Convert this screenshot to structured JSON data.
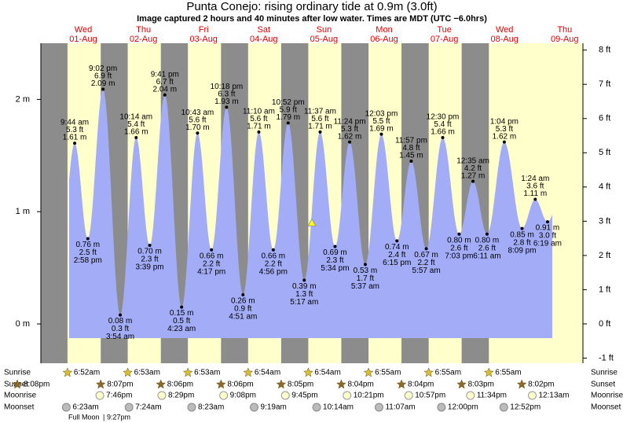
{
  "chart_data": {
    "type": "tide",
    "title": "Punta Conejo: rising  ordinary tide at 0.9m (3.0ft)",
    "subtitle": "Image captured 2 hours and 40 minutes after low water. Times are MDT (UTC −6.0hrs)",
    "current_m": 0.9,
    "ylim": [
      -0.35,
      2.5
    ],
    "yticks": [
      {
        "value": 0,
        "label": "0 m"
      },
      {
        "value": 1,
        "label": "1 m"
      },
      {
        "value": 2,
        "label": "2 m"
      }
    ],
    "y2lim": [
      -1.15,
      8.2
    ],
    "y2ticks": [
      {
        "value": -1,
        "label": "-1 ft"
      },
      {
        "value": 0,
        "label": "0 ft"
      },
      {
        "value": 1,
        "label": "1 ft"
      },
      {
        "value": 2,
        "label": "2 ft"
      },
      {
        "value": 3,
        "label": "3 ft"
      },
      {
        "value": 4,
        "label": "4 ft"
      },
      {
        "value": 5,
        "label": "5 ft"
      },
      {
        "value": 6,
        "label": "6 ft"
      },
      {
        "value": 7,
        "label": "7 ft"
      },
      {
        "value": 8,
        "label": "8 ft"
      }
    ],
    "fill_color": "#a3adf7",
    "day_color": "#ffffcc",
    "night_color": "#8c8c8c",
    "row_labels": {
      "sunrise": "Sunrise",
      "sunset": "Sunset",
      "moonrise": "Moonrise",
      "moonset": "Moonset"
    },
    "prev_sunset": "8:08pm",
    "moon_phase": {
      "name": "Full Moon",
      "time": "9:27pm"
    },
    "days": [
      {
        "dow": "Wed",
        "date": "01-Aug",
        "sunrise": "6:52am",
        "sunset": "8:07pm",
        "moonrise": "7:46pm",
        "moonset": "6:23am",
        "tides": [
          {
            "time": "9:44 am",
            "m": 1.61,
            "m_label": "1.61 m",
            "ft": 5.3,
            "ft_label": "5.3 ft"
          },
          {
            "time": "2:58 pm",
            "m": 0.76,
            "m_label": "0.76 m",
            "ft": 2.5,
            "ft_label": "2.5 ft"
          },
          {
            "time": "9:02 pm",
            "m": 2.09,
            "m_label": "2.09 m",
            "ft": 6.9,
            "ft_label": "6.9 ft"
          }
        ]
      },
      {
        "dow": "Thu",
        "date": "02-Aug",
        "sunrise": "6:53am",
        "sunset": "8:06pm",
        "moonrise": "8:29pm",
        "moonset": "7:24am",
        "tides": [
          {
            "time": "3:54 am",
            "m": 0.08,
            "m_label": "0.08 m",
            "ft": 0.3,
            "ft_label": "0.3 ft"
          },
          {
            "time": "10:14 am",
            "m": 1.66,
            "m_label": "1.66 m",
            "ft": 5.4,
            "ft_label": "5.4 ft"
          },
          {
            "time": "3:39 pm",
            "m": 0.7,
            "m_label": "0.70 m",
            "ft": 2.3,
            "ft_label": "2.3 ft"
          },
          {
            "time": "9:41 pm",
            "m": 2.04,
            "m_label": "2.04 m",
            "ft": 6.7,
            "ft_label": "6.7 ft"
          }
        ]
      },
      {
        "dow": "Fri",
        "date": "03-Aug",
        "sunrise": "6:53am",
        "sunset": "8:06pm",
        "moonrise": "9:08pm",
        "moonset": "8:23am",
        "tides": [
          {
            "time": "4:23 am",
            "m": 0.15,
            "m_label": "0.15 m",
            "ft": 0.5,
            "ft_label": "0.5 ft"
          },
          {
            "time": "10:43 am",
            "m": 1.7,
            "m_label": "1.70 m",
            "ft": 5.6,
            "ft_label": "5.6 ft"
          },
          {
            "time": "4:17 pm",
            "m": 0.66,
            "m_label": "0.66 m",
            "ft": 2.2,
            "ft_label": "2.2 ft"
          },
          {
            "time": "10:18 pm",
            "m": 1.93,
            "m_label": "1.93 m",
            "ft": 6.3,
            "ft_label": "6.3 ft"
          }
        ]
      },
      {
        "dow": "Sat",
        "date": "04-Aug",
        "sunrise": "6:54am",
        "sunset": "8:05pm",
        "moonrise": "9:45pm",
        "moonset": "9:19am",
        "tides": [
          {
            "time": "4:51 am",
            "m": 0.26,
            "m_label": "0.26 m",
            "ft": 0.9,
            "ft_label": "0.9 ft"
          },
          {
            "time": "11:10 am",
            "m": 1.71,
            "m_label": "1.71 m",
            "ft": 5.6,
            "ft_label": "5.6 ft"
          },
          {
            "time": "4:56 pm",
            "m": 0.66,
            "m_label": "0.66 m",
            "ft": 2.2,
            "ft_label": "2.2 ft"
          },
          {
            "time": "10:52 pm",
            "m": 1.79,
            "m_label": "1.79 m",
            "ft": 5.9,
            "ft_label": "5.9 ft"
          }
        ]
      },
      {
        "dow": "Sun",
        "date": "05-Aug",
        "sunrise": "6:54am",
        "sunset": "8:04pm",
        "moonrise": "10:21pm",
        "moonset": "10:14am",
        "tides": [
          {
            "time": "5:17 am",
            "m": 0.39,
            "m_label": "0.39 m",
            "ft": 1.3,
            "ft_label": "1.3 ft"
          },
          {
            "time": "11:37 am",
            "m": 1.71,
            "m_label": "1.71 m",
            "ft": 5.6,
            "ft_label": "5.6 ft"
          },
          {
            "time": "5:34 pm",
            "m": 0.69,
            "m_label": "0.69 m",
            "ft": 2.3,
            "ft_label": "2.3 ft"
          },
          {
            "time": "11:24 pm",
            "m": 1.62,
            "m_label": "1.62 m",
            "ft": 5.3,
            "ft_label": "5.3 ft"
          }
        ]
      },
      {
        "dow": "Mon",
        "date": "06-Aug",
        "sunrise": "6:55am",
        "sunset": "8:04pm",
        "moonrise": "10:57pm",
        "moonset": "11:07am",
        "tides": [
          {
            "time": "5:37 am",
            "m": 0.53,
            "m_label": "0.53 m",
            "ft": 1.7,
            "ft_label": "1.7 ft"
          },
          {
            "time": "12:03 pm",
            "m": 1.69,
            "m_label": "1.69 m",
            "ft": 5.5,
            "ft_label": "5.5 ft"
          },
          {
            "time": "6:15 pm",
            "m": 0.74,
            "m_label": "0.74 m",
            "ft": 2.4,
            "ft_label": "2.4 ft"
          },
          {
            "time": "11:57 pm",
            "m": 1.45,
            "m_label": "1.45 m",
            "ft": 4.8,
            "ft_label": "4.8 ft"
          }
        ]
      },
      {
        "dow": "Tue",
        "date": "07-Aug",
        "sunrise": "6:55am",
        "sunset": "8:03pm",
        "moonrise": "11:34pm",
        "moonset": "12:00pm",
        "tides": [
          {
            "time": "5:57 am",
            "m": 0.67,
            "m_label": "0.67 m",
            "ft": 2.2,
            "ft_label": "2.2 ft"
          },
          {
            "time": "12:30 pm",
            "m": 1.66,
            "m_label": "1.66 m",
            "ft": 5.4,
            "ft_label": "5.4 ft"
          },
          {
            "time": "7:03 pm",
            "m": 0.8,
            "m_label": "0.80 m",
            "ft": 2.6,
            "ft_label": "2.6 ft"
          }
        ]
      },
      {
        "dow": "Wed",
        "date": "08-Aug",
        "sunrise": "6:55am",
        "sunset": "8:02pm",
        "moonrise": null,
        "moonset": "12:52pm",
        "tides": [
          {
            "time": "12:35 am",
            "m": 1.27,
            "m_label": "1.27 m",
            "ft": 4.2,
            "ft_label": "4.2 ft"
          },
          {
            "time": "6:11 am",
            "m": 0.8,
            "m_label": "0.80 m",
            "ft": 2.6,
            "ft_label": "2.6 ft"
          },
          {
            "time": "1:04 pm",
            "m": 1.62,
            "m_label": "1.62 m",
            "ft": 5.3,
            "ft_label": "5.3 ft"
          },
          {
            "time": "8:09 pm",
            "m": 0.85,
            "m_label": "0.85 m",
            "ft": 2.8,
            "ft_label": "2.8 ft"
          }
        ]
      },
      {
        "dow": "Thu",
        "date": "09-Aug",
        "sunrise": null,
        "sunset": null,
        "moonrise": "12:13am",
        "moonset": null,
        "tides": [
          {
            "time": "1:24 am",
            "m": 1.11,
            "m_label": "1.11 m",
            "ft": 3.6,
            "ft_label": "3.6 ft"
          },
          {
            "time": "6:19 am",
            "m": 0.91,
            "m_label": "0.91 m",
            "ft": 3.0,
            "ft_label": "3.0 ft"
          }
        ]
      }
    ]
  }
}
